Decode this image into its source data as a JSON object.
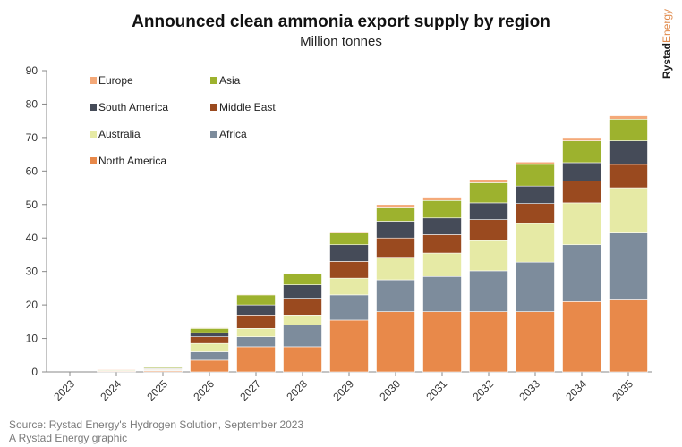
{
  "title": "Announced clean ammonia export supply by region",
  "subtitle": "Million tonnes",
  "brand": {
    "main": "Rystad",
    "accent": "Energy"
  },
  "source": {
    "line1": "Source: Rystad Energy's Hydrogen Solution, September 2023",
    "line2": "A Rystad Energy graphic"
  },
  "chart_data": {
    "type": "bar",
    "stacked": true,
    "categories": [
      "2023",
      "2024",
      "2025",
      "2026",
      "2027",
      "2028",
      "2029",
      "2030",
      "2031",
      "2032",
      "2033",
      "2034",
      "2035"
    ],
    "ylim": [
      0,
      90
    ],
    "yticks": [
      0,
      10,
      20,
      30,
      40,
      50,
      60,
      70,
      80,
      90
    ],
    "grid": false,
    "legend": "top-left",
    "series": [
      {
        "name": "North America",
        "color": "#e8894a",
        "values": [
          0,
          0.2,
          0.3,
          3.5,
          7.5,
          7.5,
          15.5,
          18,
          18,
          18,
          18,
          21,
          21.5
        ]
      },
      {
        "name": "Africa",
        "color": "#7d8c9c",
        "values": [
          0,
          0.1,
          0.2,
          2.5,
          3,
          6.5,
          7.5,
          9.5,
          10.5,
          12.2,
          14.8,
          17,
          20
        ]
      },
      {
        "name": "Australia",
        "color": "#e6eaa5",
        "values": [
          0,
          0.1,
          0.2,
          2.5,
          2.5,
          3,
          5,
          6.5,
          7,
          9,
          11.5,
          12.5,
          13.5
        ]
      },
      {
        "name": "Middle East",
        "color": "#9a4a1f",
        "values": [
          0,
          0,
          0.2,
          2,
          4,
          5,
          5,
          6,
          5.5,
          6.3,
          6,
          6.5,
          7
        ]
      },
      {
        "name": "South America",
        "color": "#454b58",
        "values": [
          0,
          0,
          0.2,
          1.2,
          3,
          4,
          5,
          5,
          5,
          5,
          5.2,
          5.5,
          7
        ]
      },
      {
        "name": "Asia",
        "color": "#9db22e",
        "values": [
          0,
          0.2,
          0.3,
          1.3,
          3,
          3.2,
          3.5,
          4,
          5.2,
          6,
          6.5,
          6.5,
          6.5
        ]
      },
      {
        "name": "Europe",
        "color": "#f4a979",
        "values": [
          0,
          0.2,
          0.2,
          0.2,
          0.2,
          0.2,
          0.3,
          1,
          1,
          1,
          0.7,
          1,
          1
        ]
      }
    ]
  }
}
